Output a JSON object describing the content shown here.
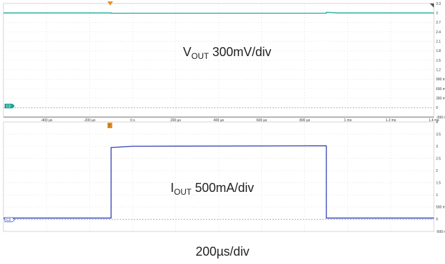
{
  "chart_data": [
    {
      "type": "line",
      "panel": "top",
      "annotation_main": "V",
      "annotation_sub": "OUT",
      "annotation_scale": " 300mV/div",
      "channel_marker": "C2",
      "trace_color": "#19a89a",
      "series": [
        {
          "x": [
            -500,
            0,
            0,
            1000,
            1000,
            1050,
            1500
          ],
          "y": [
            3.0,
            3.0,
            2.99,
            2.99,
            3.02,
            3.0,
            3.0
          ]
        }
      ],
      "xlim": [
        -500,
        1500
      ],
      "ylim": [
        -0.3,
        3.3
      ],
      "y_tick_labels": [
        "3.3",
        "3",
        "2.7",
        "2.4",
        "2.1",
        "1.8",
        "1.5",
        "1.2",
        "900 m",
        "600 m",
        "300 m",
        "0",
        "-300 m"
      ],
      "grid": true
    },
    {
      "type": "line",
      "panel": "bottom",
      "annotation_main": "I",
      "annotation_sub": "OUT",
      "annotation_scale": " 500mA/div",
      "channel_marker": "C3",
      "trace_color": "#2e3fb3",
      "series": [
        {
          "x": [
            -500,
            0,
            0,
            100,
            1000,
            1000,
            1500
          ],
          "y": [
            0.05,
            0.05,
            2.95,
            3.0,
            3.02,
            0.05,
            0.05
          ]
        }
      ],
      "xlim": [
        -500,
        1500
      ],
      "ylim": [
        -0.5,
        4.0
      ],
      "y_tick_labels": [
        "4",
        "3.5",
        "3",
        "2.5",
        "2",
        "1.5",
        "1",
        "500 m",
        "0",
        "-500 m"
      ],
      "grid": true
    }
  ],
  "time_axis": {
    "tick_labels": [
      "-400 µs",
      "-200 µs",
      "0 s",
      "200 µs",
      "400 µs",
      "600 µs",
      "800 µs",
      "1 ms",
      "1.2 ms",
      "1.4 ms"
    ],
    "trigger_marker": "T"
  },
  "timebase_label": "200µs/div",
  "colors": {
    "trigger": "#e8901e",
    "grid": "#c8c8c8",
    "axis": "#444444"
  }
}
